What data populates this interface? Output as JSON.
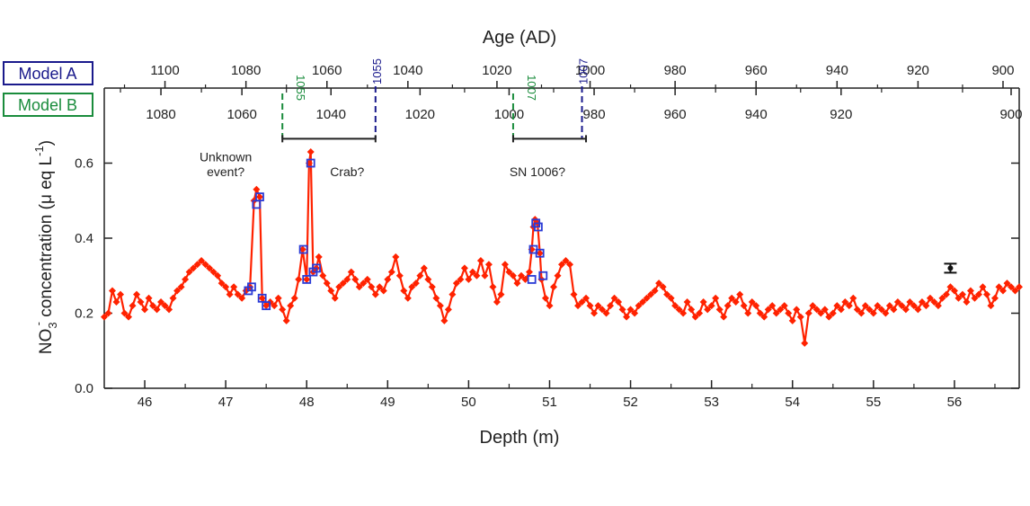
{
  "chart_data": {
    "type": "scatter",
    "title": "Age (AD)",
    "xlabel": "Depth (m)",
    "ylabel_main": "NO",
    "ylabel_sub": "3",
    "ylabel_sup": "-",
    "ylabel_rest": " concentration (μ eq L",
    "ylabel_rest_sup": "-1",
    "ylabel_close": ")",
    "xlim": [
      45.5,
      56.8
    ],
    "ylim": [
      0,
      0.8
    ],
    "x_ticks": [
      "46",
      "47",
      "48",
      "49",
      "50",
      "51",
      "52",
      "53",
      "54",
      "55",
      "56"
    ],
    "y_ticks": [
      "0.0",
      "0.2",
      "0.4",
      "0.6"
    ],
    "model_a": {
      "label": "Model A",
      "color": "#1a1a8c",
      "ticks": [
        {
          "age": "1100",
          "depth": 46.25
        },
        {
          "age": "1080",
          "depth": 47.25
        },
        {
          "age": "1060",
          "depth": 48.25
        },
        {
          "age": "1040",
          "depth": 49.25
        },
        {
          "age": "1020",
          "depth": 50.35
        },
        {
          "age": "1000",
          "depth": 51.5
        },
        {
          "age": "980",
          "depth": 52.55
        },
        {
          "age": "960",
          "depth": 53.55
        },
        {
          "age": "940",
          "depth": 54.55
        },
        {
          "age": "920",
          "depth": 55.55
        },
        {
          "age": "900",
          "depth": 56.6
        }
      ],
      "minor_ticks": [
        45.75,
        46.75,
        47.75,
        48.75,
        49.8,
        50.9,
        52.0,
        53.05,
        54.05,
        55.05,
        56.1
      ],
      "markers": [
        {
          "age": "1055",
          "depth": 48.85
        },
        {
          "age": "1007",
          "depth": 51.4
        }
      ]
    },
    "model_b": {
      "label": "Model B",
      "color": "#1a8c3c",
      "ticks": [
        {
          "age": "1080",
          "depth": 46.2
        },
        {
          "age": "1060",
          "depth": 47.2
        },
        {
          "age": "1040",
          "depth": 48.3
        },
        {
          "age": "1020",
          "depth": 49.4
        },
        {
          "age": "1000",
          "depth": 50.5
        },
        {
          "age": "980",
          "depth": 51.55
        },
        {
          "age": "960",
          "depth": 52.55
        },
        {
          "age": "940",
          "depth": 53.55
        },
        {
          "age": "920",
          "depth": 54.6
        },
        {
          "age": "900",
          "depth": 56.7
        }
      ],
      "minor_ticks": [
        45.7,
        46.7,
        47.75,
        48.85,
        49.95,
        51.05,
        52.05,
        53.05,
        54.1,
        55.1,
        56.1
      ],
      "markers": [
        {
          "age": "1055",
          "depth": 47.7
        },
        {
          "age": "1007",
          "depth": 50.55
        }
      ]
    },
    "intervals": [
      {
        "start": 47.7,
        "end": 48.85,
        "y": 0.665
      },
      {
        "start": 50.55,
        "end": 51.45,
        "y": 0.665
      }
    ],
    "annotations": [
      {
        "text": "Unknown",
        "x": 47.0,
        "y": 0.605
      },
      {
        "text": "event?",
        "x": 47.0,
        "y": 0.565
      },
      {
        "text": "Crab?",
        "x": 48.5,
        "y": 0.565
      },
      {
        "text": "SN 1006?",
        "x": 50.85,
        "y": 0.565
      }
    ],
    "errorbar": {
      "x": 55.95,
      "y": 0.32,
      "err": 0.012
    },
    "series": [
      {
        "color": "#ff2200",
        "points": [
          [
            45.5,
            0.19
          ],
          [
            45.55,
            0.2
          ],
          [
            45.6,
            0.26
          ],
          [
            45.65,
            0.23
          ],
          [
            45.7,
            0.25
          ],
          [
            45.75,
            0.2
          ],
          [
            45.8,
            0.19
          ],
          [
            45.85,
            0.22
          ],
          [
            45.9,
            0.25
          ],
          [
            45.95,
            0.23
          ],
          [
            46.0,
            0.21
          ],
          [
            46.05,
            0.24
          ],
          [
            46.1,
            0.22
          ],
          [
            46.15,
            0.21
          ],
          [
            46.2,
            0.23
          ],
          [
            46.25,
            0.22
          ],
          [
            46.3,
            0.21
          ],
          [
            46.35,
            0.24
          ],
          [
            46.4,
            0.26
          ],
          [
            46.45,
            0.27
          ],
          [
            46.5,
            0.29
          ],
          [
            46.55,
            0.31
          ],
          [
            46.6,
            0.32
          ],
          [
            46.65,
            0.33
          ],
          [
            46.7,
            0.34
          ],
          [
            46.75,
            0.33
          ],
          [
            46.8,
            0.32
          ],
          [
            46.85,
            0.31
          ],
          [
            46.9,
            0.3
          ],
          [
            46.95,
            0.28
          ],
          [
            47.0,
            0.27
          ],
          [
            47.05,
            0.25
          ],
          [
            47.1,
            0.27
          ],
          [
            47.15,
            0.25
          ],
          [
            47.2,
            0.24
          ],
          [
            47.25,
            0.26
          ],
          [
            47.3,
            0.27
          ],
          [
            47.35,
            0.5
          ],
          [
            47.38,
            0.53
          ],
          [
            47.42,
            0.51
          ],
          [
            47.45,
            0.24
          ],
          [
            47.5,
            0.22
          ],
          [
            47.55,
            0.23
          ],
          [
            47.6,
            0.22
          ],
          [
            47.65,
            0.24
          ],
          [
            47.7,
            0.21
          ],
          [
            47.75,
            0.18
          ],
          [
            47.8,
            0.22
          ],
          [
            47.85,
            0.24
          ],
          [
            47.9,
            0.29
          ],
          [
            47.95,
            0.37
          ],
          [
            48.0,
            0.29
          ],
          [
            48.03,
            0.6
          ],
          [
            48.05,
            0.63
          ],
          [
            48.08,
            0.31
          ],
          [
            48.12,
            0.32
          ],
          [
            48.15,
            0.35
          ],
          [
            48.2,
            0.3
          ],
          [
            48.25,
            0.28
          ],
          [
            48.3,
            0.26
          ],
          [
            48.35,
            0.24
          ],
          [
            48.4,
            0.27
          ],
          [
            48.45,
            0.28
          ],
          [
            48.5,
            0.29
          ],
          [
            48.55,
            0.31
          ],
          [
            48.6,
            0.29
          ],
          [
            48.65,
            0.27
          ],
          [
            48.7,
            0.28
          ],
          [
            48.75,
            0.29
          ],
          [
            48.8,
            0.27
          ],
          [
            48.85,
            0.25
          ],
          [
            48.9,
            0.27
          ],
          [
            48.95,
            0.26
          ],
          [
            49.0,
            0.29
          ],
          [
            49.05,
            0.31
          ],
          [
            49.1,
            0.35
          ],
          [
            49.15,
            0.3
          ],
          [
            49.2,
            0.26
          ],
          [
            49.25,
            0.24
          ],
          [
            49.3,
            0.27
          ],
          [
            49.35,
            0.28
          ],
          [
            49.4,
            0.3
          ],
          [
            49.45,
            0.32
          ],
          [
            49.5,
            0.29
          ],
          [
            49.55,
            0.27
          ],
          [
            49.6,
            0.24
          ],
          [
            49.65,
            0.22
          ],
          [
            49.7,
            0.18
          ],
          [
            49.75,
            0.21
          ],
          [
            49.8,
            0.25
          ],
          [
            49.85,
            0.28
          ],
          [
            49.9,
            0.29
          ],
          [
            49.95,
            0.32
          ],
          [
            50.0,
            0.29
          ],
          [
            50.05,
            0.31
          ],
          [
            50.1,
            0.3
          ],
          [
            50.15,
            0.34
          ],
          [
            50.2,
            0.3
          ],
          [
            50.25,
            0.33
          ],
          [
            50.3,
            0.27
          ],
          [
            50.35,
            0.23
          ],
          [
            50.4,
            0.25
          ],
          [
            50.45,
            0.33
          ],
          [
            50.5,
            0.31
          ],
          [
            50.55,
            0.3
          ],
          [
            50.6,
            0.28
          ],
          [
            50.65,
            0.3
          ],
          [
            50.7,
            0.29
          ],
          [
            50.75,
            0.31
          ],
          [
            50.78,
            0.37
          ],
          [
            50.8,
            0.43
          ],
          [
            50.82,
            0.45
          ],
          [
            50.85,
            0.44
          ],
          [
            50.88,
            0.36
          ],
          [
            50.9,
            0.29
          ],
          [
            50.95,
            0.24
          ],
          [
            51.0,
            0.22
          ],
          [
            51.05,
            0.27
          ],
          [
            51.1,
            0.3
          ],
          [
            51.15,
            0.33
          ],
          [
            51.2,
            0.34
          ],
          [
            51.25,
            0.33
          ],
          [
            51.3,
            0.25
          ],
          [
            51.35,
            0.22
          ],
          [
            51.4,
            0.23
          ],
          [
            51.45,
            0.24
          ],
          [
            51.5,
            0.22
          ],
          [
            51.55,
            0.2
          ],
          [
            51.6,
            0.22
          ],
          [
            51.65,
            0.21
          ],
          [
            51.7,
            0.2
          ],
          [
            51.75,
            0.22
          ],
          [
            51.8,
            0.24
          ],
          [
            51.85,
            0.23
          ],
          [
            51.9,
            0.21
          ],
          [
            51.95,
            0.19
          ],
          [
            52.0,
            0.21
          ],
          [
            52.05,
            0.2
          ],
          [
            52.1,
            0.22
          ],
          [
            52.15,
            0.23
          ],
          [
            52.2,
            0.24
          ],
          [
            52.25,
            0.25
          ],
          [
            52.3,
            0.26
          ],
          [
            52.35,
            0.28
          ],
          [
            52.4,
            0.27
          ],
          [
            52.45,
            0.25
          ],
          [
            52.5,
            0.24
          ],
          [
            52.55,
            0.22
          ],
          [
            52.6,
            0.21
          ],
          [
            52.65,
            0.2
          ],
          [
            52.7,
            0.23
          ],
          [
            52.75,
            0.21
          ],
          [
            52.8,
            0.19
          ],
          [
            52.85,
            0.2
          ],
          [
            52.9,
            0.23
          ],
          [
            52.95,
            0.21
          ],
          [
            53.0,
            0.22
          ],
          [
            53.05,
            0.24
          ],
          [
            53.1,
            0.21
          ],
          [
            53.15,
            0.19
          ],
          [
            53.2,
            0.22
          ],
          [
            53.25,
            0.24
          ],
          [
            53.3,
            0.23
          ],
          [
            53.35,
            0.25
          ],
          [
            53.4,
            0.22
          ],
          [
            53.45,
            0.2
          ],
          [
            53.5,
            0.23
          ],
          [
            53.55,
            0.22
          ],
          [
            53.6,
            0.2
          ],
          [
            53.65,
            0.19
          ],
          [
            53.7,
            0.21
          ],
          [
            53.75,
            0.22
          ],
          [
            53.8,
            0.2
          ],
          [
            53.85,
            0.21
          ],
          [
            53.9,
            0.22
          ],
          [
            53.95,
            0.2
          ],
          [
            54.0,
            0.18
          ],
          [
            54.05,
            0.21
          ],
          [
            54.1,
            0.19
          ],
          [
            54.15,
            0.12
          ],
          [
            54.2,
            0.2
          ],
          [
            54.25,
            0.22
          ],
          [
            54.3,
            0.21
          ],
          [
            54.35,
            0.2
          ],
          [
            54.4,
            0.21
          ],
          [
            54.45,
            0.19
          ],
          [
            54.5,
            0.2
          ],
          [
            54.55,
            0.22
          ],
          [
            54.6,
            0.21
          ],
          [
            54.65,
            0.23
          ],
          [
            54.7,
            0.22
          ],
          [
            54.75,
            0.24
          ],
          [
            54.8,
            0.21
          ],
          [
            54.85,
            0.2
          ],
          [
            54.9,
            0.22
          ],
          [
            54.95,
            0.21
          ],
          [
            55.0,
            0.2
          ],
          [
            55.05,
            0.22
          ],
          [
            55.1,
            0.21
          ],
          [
            55.15,
            0.2
          ],
          [
            55.2,
            0.22
          ],
          [
            55.25,
            0.21
          ],
          [
            55.3,
            0.23
          ],
          [
            55.35,
            0.22
          ],
          [
            55.4,
            0.21
          ],
          [
            55.45,
            0.23
          ],
          [
            55.5,
            0.22
          ],
          [
            55.55,
            0.21
          ],
          [
            55.6,
            0.23
          ],
          [
            55.65,
            0.22
          ],
          [
            55.7,
            0.24
          ],
          [
            55.75,
            0.23
          ],
          [
            55.8,
            0.22
          ],
          [
            55.85,
            0.24
          ],
          [
            55.9,
            0.25
          ],
          [
            55.95,
            0.27
          ],
          [
            56.0,
            0.26
          ],
          [
            56.05,
            0.24
          ],
          [
            56.1,
            0.25
          ],
          [
            56.15,
            0.23
          ],
          [
            56.2,
            0.26
          ],
          [
            56.25,
            0.24
          ],
          [
            56.3,
            0.25
          ],
          [
            56.35,
            0.27
          ],
          [
            56.4,
            0.25
          ],
          [
            56.45,
            0.22
          ],
          [
            56.5,
            0.24
          ],
          [
            56.55,
            0.27
          ],
          [
            56.6,
            0.26
          ],
          [
            56.65,
            0.28
          ],
          [
            56.7,
            0.27
          ],
          [
            56.75,
            0.26
          ],
          [
            56.8,
            0.27
          ]
        ]
      }
    ],
    "highlight_squares": [
      [
        47.28,
        0.26
      ],
      [
        47.32,
        0.27
      ],
      [
        47.38,
        0.49
      ],
      [
        47.42,
        0.51
      ],
      [
        47.45,
        0.24
      ],
      [
        47.5,
        0.22
      ],
      [
        47.96,
        0.37
      ],
      [
        48.0,
        0.29
      ],
      [
        48.05,
        0.6
      ],
      [
        48.08,
        0.31
      ],
      [
        48.12,
        0.32
      ],
      [
        50.78,
        0.29
      ],
      [
        50.8,
        0.37
      ],
      [
        50.83,
        0.44
      ],
      [
        50.86,
        0.43
      ],
      [
        50.88,
        0.36
      ],
      [
        50.92,
        0.3
      ]
    ]
  }
}
